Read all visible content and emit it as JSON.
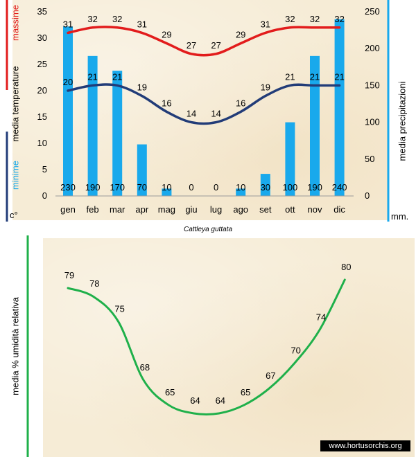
{
  "chart_data": [
    {
      "type": "bar+line",
      "title": "Cattleya guttata",
      "categories": [
        "gen",
        "feb",
        "mar",
        "apr",
        "mag",
        "giu",
        "lug",
        "ago",
        "set",
        "ott",
        "nov",
        "dic"
      ],
      "y_left": {
        "ylim": [
          0,
          35
        ],
        "ticks": [
          0,
          5,
          10,
          15,
          20,
          25,
          30,
          35
        ],
        "unit": "c°",
        "label_max": "massime",
        "label_mid": "media  temperature",
        "label_min": "minime"
      },
      "y_right": {
        "ylim": [
          0,
          250
        ],
        "ticks": [
          0,
          50,
          100,
          150,
          200,
          250
        ],
        "unit": "mm.",
        "label": "media  precipitazioni"
      },
      "series": [
        {
          "name": "media precipitazioni",
          "kind": "bar",
          "axis": "right",
          "color": "#19a9ec",
          "values": [
            230,
            190,
            170,
            70,
            10,
            0,
            0,
            10,
            30,
            100,
            190,
            240
          ]
        },
        {
          "name": "massime",
          "kind": "line",
          "axis": "left",
          "color": "#e21c1c",
          "values": [
            31,
            32,
            32,
            31,
            29,
            27,
            27,
            29,
            31,
            32,
            32,
            32
          ]
        },
        {
          "name": "minime",
          "kind": "line",
          "axis": "left",
          "color": "#223c78",
          "values": [
            20,
            21,
            21,
            19,
            16,
            14,
            14,
            16,
            19,
            21,
            21,
            21
          ]
        }
      ],
      "caption": "Cattleya guttata"
    },
    {
      "type": "line",
      "ylabel": "media %  umidità relativa",
      "series": [
        {
          "name": "umidità relativa",
          "color": "#1fb04a",
          "values": [
            79,
            78,
            75,
            68,
            65,
            64,
            64,
            65,
            67,
            70,
            74,
            80
          ]
        }
      ]
    }
  ],
  "watermark": "www.hortusorchis.org",
  "colors": {
    "accent_red": "#e21c1c",
    "accent_navy": "#223c78",
    "accent_blue": "#19a9ec",
    "accent_green": "#1fb04a"
  }
}
